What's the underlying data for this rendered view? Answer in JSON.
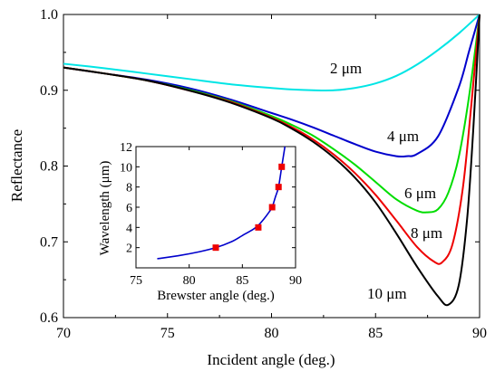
{
  "chart_data": [
    {
      "type": "line",
      "title": "",
      "xlabel": "Incident angle (deg.)",
      "ylabel": "Reflectance",
      "xlim": [
        70,
        90
      ],
      "ylim": [
        0.6,
        1.0
      ],
      "xticks": [
        70,
        75,
        80,
        85,
        90
      ],
      "xtick_labels": [
        "70",
        "75",
        "80",
        "85",
        "90"
      ],
      "yticks": [
        0.6,
        0.7,
        0.8,
        0.9,
        1.0
      ],
      "ytick_labels": [
        "0.6",
        "0.7",
        "0.8",
        "0.9",
        "1.0"
      ],
      "grid": false,
      "legend": "none (series labeled inline)",
      "series": [
        {
          "name": "2 μm",
          "color": "#00e5e5",
          "points": [
            [
              70,
              0.935
            ],
            [
              72,
              0.929
            ],
            [
              74,
              0.922
            ],
            [
              76,
              0.915
            ],
            [
              78,
              0.908
            ],
            [
              80,
              0.903
            ],
            [
              81,
              0.901
            ],
            [
              82,
              0.9
            ],
            [
              83,
              0.9
            ],
            [
              84,
              0.903
            ],
            [
              85,
              0.909
            ],
            [
              86,
              0.919
            ],
            [
              87,
              0.934
            ],
            [
              88,
              0.953
            ],
            [
              89,
              0.975
            ],
            [
              90,
              1.0
            ]
          ]
        },
        {
          "name": "4 μm",
          "color": "#0000cc",
          "points": [
            [
              70,
              0.93
            ],
            [
              72,
              0.922
            ],
            [
              74,
              0.914
            ],
            [
              76,
              0.903
            ],
            [
              78,
              0.888
            ],
            [
              80,
              0.87
            ],
            [
              81,
              0.861
            ],
            [
              82,
              0.851
            ],
            [
              83,
              0.84
            ],
            [
              84,
              0.829
            ],
            [
              85,
              0.819
            ],
            [
              86,
              0.813
            ],
            [
              86.5,
              0.813
            ],
            [
              87,
              0.816
            ],
            [
              88,
              0.839
            ],
            [
              89,
              0.904
            ],
            [
              89.5,
              0.952
            ],
            [
              90,
              1.0
            ]
          ]
        },
        {
          "name": "6 μm",
          "color": "#00dd00",
          "points": [
            [
              70,
              0.93
            ],
            [
              72,
              0.922
            ],
            [
              74,
              0.913
            ],
            [
              76,
              0.901
            ],
            [
              78,
              0.886
            ],
            [
              80,
              0.866
            ],
            [
              81,
              0.854
            ],
            [
              82,
              0.84
            ],
            [
              83,
              0.822
            ],
            [
              84,
              0.802
            ],
            [
              85,
              0.779
            ],
            [
              86,
              0.756
            ],
            [
              87,
              0.741
            ],
            [
              87.5,
              0.739
            ],
            [
              88,
              0.743
            ],
            [
              88.5,
              0.765
            ],
            [
              89,
              0.812
            ],
            [
              89.5,
              0.893
            ],
            [
              90,
              1.0
            ]
          ]
        },
        {
          "name": "8 μm",
          "color": "#ee0000",
          "points": [
            [
              70,
              0.93
            ],
            [
              72,
              0.922
            ],
            [
              74,
              0.913
            ],
            [
              76,
              0.9
            ],
            [
              78,
              0.885
            ],
            [
              80,
              0.864
            ],
            [
              81,
              0.851
            ],
            [
              82,
              0.835
            ],
            [
              83,
              0.815
            ],
            [
              84,
              0.791
            ],
            [
              85,
              0.762
            ],
            [
              86,
              0.728
            ],
            [
              87,
              0.693
            ],
            [
              87.8,
              0.674
            ],
            [
              88.2,
              0.673
            ],
            [
              88.7,
              0.697
            ],
            [
              89.2,
              0.772
            ],
            [
              89.6,
              0.88
            ],
            [
              90,
              1.0
            ]
          ]
        },
        {
          "name": "10 μm",
          "color": "#000000",
          "points": [
            [
              70,
              0.93
            ],
            [
              72,
              0.922
            ],
            [
              74,
              0.913
            ],
            [
              76,
              0.9
            ],
            [
              78,
              0.884
            ],
            [
              80,
              0.863
            ],
            [
              81,
              0.849
            ],
            [
              82,
              0.832
            ],
            [
              83,
              0.811
            ],
            [
              84,
              0.785
            ],
            [
              85,
              0.752
            ],
            [
              86,
              0.711
            ],
            [
              87,
              0.667
            ],
            [
              88,
              0.628
            ],
            [
              88.5,
              0.617
            ],
            [
              89,
              0.643
            ],
            [
              89.4,
              0.73
            ],
            [
              89.7,
              0.85
            ],
            [
              90,
              1.0
            ]
          ]
        }
      ]
    },
    {
      "type": "scatter",
      "title": "",
      "xlabel": "Brewster angle (deg.)",
      "ylabel": "Wavelength (μm)",
      "xlim": [
        75,
        90
      ],
      "ylim": [
        0,
        12
      ],
      "xticks": [
        75,
        80,
        85,
        90
      ],
      "xtick_labels": [
        "75",
        "80",
        "85",
        "90"
      ],
      "yticks": [
        2,
        4,
        6,
        8,
        10,
        12
      ],
      "ytick_labels": [
        "2",
        "4",
        "6",
        "8",
        "10",
        "12"
      ],
      "grid": false,
      "series": [
        {
          "name": "",
          "kind": "markers",
          "marker": "square",
          "color": "#ee0000",
          "points": [
            [
              82.5,
              2
            ],
            [
              86.5,
              4
            ],
            [
              87.8,
              6
            ],
            [
              88.4,
              8
            ],
            [
              88.7,
              10
            ]
          ]
        },
        {
          "name": "",
          "kind": "line",
          "color": "#0000cc",
          "points": [
            [
              77,
              0.9
            ],
            [
              79,
              1.2
            ],
            [
              81,
              1.6
            ],
            [
              82.5,
              2.0
            ],
            [
              84,
              2.6
            ],
            [
              85,
              3.2
            ],
            [
              86,
              3.8
            ],
            [
              86.5,
              4.2
            ],
            [
              87,
              4.8
            ],
            [
              87.5,
              5.5
            ],
            [
              87.8,
              6.0
            ],
            [
              88.1,
              7.0
            ],
            [
              88.4,
              8.0
            ],
            [
              88.7,
              10.0
            ],
            [
              89,
              12.0
            ]
          ]
        }
      ]
    }
  ]
}
